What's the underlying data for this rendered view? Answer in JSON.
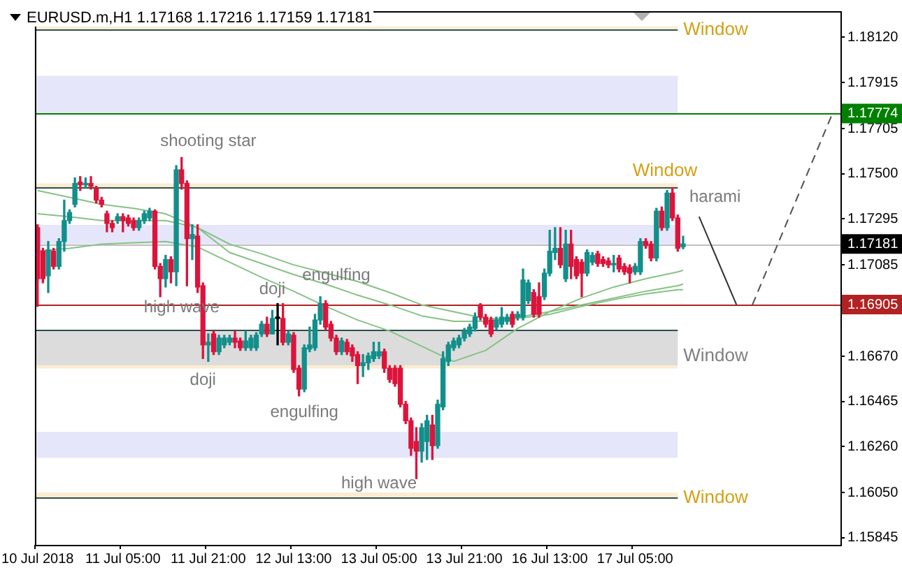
{
  "chart_data": {
    "type": "candlestick",
    "title": "EURUSD.m,H1 1.17168 1.17216 1.17159 1.17181",
    "categories": [
      "10 Jul 2018",
      null,
      null,
      null,
      null,
      null,
      null,
      null,
      null,
      null,
      null,
      null,
      null,
      null,
      null,
      null,
      "11 Jul 05:00",
      null,
      null,
      null,
      null,
      null,
      null,
      null,
      null,
      null,
      null,
      null,
      null,
      null,
      null,
      null,
      "11 Jul 21:00",
      null,
      null,
      null,
      null,
      null,
      null,
      null,
      null,
      null,
      null,
      null,
      null,
      null,
      null,
      null,
      "12 Jul 13:00",
      null,
      null,
      null,
      null,
      null,
      null,
      null,
      null,
      null,
      null,
      null,
      null,
      null,
      null,
      null,
      "13 Jul 05:00",
      null,
      null,
      null,
      null,
      null,
      null,
      null,
      null,
      null,
      null,
      null,
      null,
      null,
      null,
      null,
      "13 Jul 21:00",
      null,
      null,
      null,
      null,
      null,
      null,
      null,
      null,
      null,
      null,
      null,
      null,
      null,
      null,
      null,
      "16 Jul 13:00",
      null,
      null,
      null,
      null,
      null,
      null,
      null,
      null,
      null,
      null,
      null,
      null,
      null,
      null,
      null,
      "17 Jul 05:00",
      null,
      null,
      null,
      null,
      null,
      null,
      null,
      null,
      null,
      null,
      null,
      null,
      null,
      null,
      null,
      null,
      null,
      null,
      null,
      null,
      null,
      null,
      null,
      null,
      null,
      null,
      null,
      null,
      null,
      null,
      null,
      null,
      null,
      null,
      null,
      null,
      null,
      null
    ],
    "ohlc": [
      [
        1.17255,
        1.17268,
        1.16897,
        1.17023
      ],
      [
        1.17148,
        1.17161,
        1.17004,
        1.17023
      ],
      [
        1.17036,
        1.17192,
        1.1696,
        1.17154
      ],
      [
        1.17148,
        1.17161,
        1.17067,
        1.17079
      ],
      [
        1.17079,
        1.17205,
        1.17067,
        1.17192
      ],
      [
        1.17192,
        1.1738,
        1.17148,
        1.17287
      ],
      [
        1.17287,
        1.17336,
        1.17274,
        1.17324
      ],
      [
        1.17361,
        1.17481,
        1.17349,
        1.17456
      ],
      [
        1.17462,
        1.17487,
        1.17424,
        1.1745
      ],
      [
        1.1745,
        1.17481,
        1.17437,
        1.17456
      ],
      [
        1.17456,
        1.17487,
        1.1743,
        1.17443
      ],
      [
        1.1743,
        1.17443,
        1.17367,
        1.1738
      ],
      [
        1.1738,
        1.17393,
        1.17349,
        1.17361
      ],
      [
        1.17318,
        1.1733,
        1.17236,
        1.17274
      ],
      [
        1.17274,
        1.17287,
        1.17236,
        1.17255
      ],
      [
        1.17287,
        1.17318,
        1.17274,
        1.17305
      ],
      [
        1.17305,
        1.17318,
        1.17236,
        1.17287
      ],
      [
        1.17299,
        1.17312,
        1.17262,
        1.17274
      ],
      [
        1.17287,
        1.17299,
        1.17243,
        1.17255
      ],
      [
        1.17255,
        1.17299,
        1.17243,
        1.17287
      ],
      [
        1.17287,
        1.1733,
        1.17274,
        1.17318
      ],
      [
        1.17299,
        1.17343,
        1.17287,
        1.1733
      ],
      [
        1.1733,
        1.17336,
        1.17067,
        1.17079
      ],
      [
        1.17079,
        1.17092,
        1.16941,
        1.17023
      ],
      [
        1.17023,
        1.17129,
        1.16985,
        1.1711
      ],
      [
        1.1711,
        1.17123,
        1.17004,
        1.17054
      ],
      [
        1.17054,
        1.17537,
        1.16991,
        1.17518
      ],
      [
        1.17518,
        1.17574,
        1.1743,
        1.17456
      ],
      [
        1.17456,
        1.17468,
        1.16991,
        1.17205
      ],
      [
        1.17205,
        1.17268,
        1.1711,
        1.17224
      ],
      [
        1.17217,
        1.17268,
        1.1696,
        1.16985
      ],
      [
        1.16991,
        1.17004,
        1.1666,
        1.16722
      ],
      [
        1.16722,
        1.16772,
        1.16647,
        1.16734
      ],
      [
        1.16772,
        1.16785,
        1.16678,
        1.16691
      ],
      [
        1.16691,
        1.16766,
        1.16678,
        1.16753
      ],
      [
        1.16722,
        1.16766,
        1.16709,
        1.16753
      ],
      [
        1.16734,
        1.16766,
        1.16722,
        1.16753
      ],
      [
        1.16753,
        1.16785,
        1.16709,
        1.16734
      ],
      [
        1.1674,
        1.16753,
        1.16697,
        1.16709
      ],
      [
        1.16709,
        1.16785,
        1.16697,
        1.1674
      ],
      [
        1.16709,
        1.16766,
        1.16697,
        1.16753
      ],
      [
        1.16709,
        1.16778,
        1.16697,
        1.16766
      ],
      [
        1.16772,
        1.16829,
        1.1676,
        1.16816
      ],
      [
        1.16816,
        1.16848,
        1.1676,
        1.16772
      ],
      [
        1.16772,
        1.16879,
        1.16772,
        1.16842
      ],
      [
        1.16842,
        1.1691,
        1.16722,
        1.16842
      ],
      [
        1.16842,
        1.1691,
        1.16722,
        1.16734
      ],
      [
        1.16734,
        1.16785,
        1.16722,
        1.16772
      ],
      [
        1.16766,
        1.16778,
        1.16597,
        1.1661
      ],
      [
        1.16616,
        1.16628,
        1.1649,
        1.16521
      ],
      [
        1.16521,
        1.16722,
        1.16509,
        1.16709
      ],
      [
        1.16703,
        1.16803,
        1.16691,
        1.16722
      ],
      [
        1.16709,
        1.16861,
        1.16697,
        1.16835
      ],
      [
        1.16835,
        1.16941,
        1.16816,
        1.1691
      ],
      [
        1.1691,
        1.16923,
        1.16791,
        1.16803
      ],
      [
        1.16816,
        1.16829,
        1.1674,
        1.16753
      ],
      [
        1.16753,
        1.16766,
        1.16678,
        1.16691
      ],
      [
        1.16691,
        1.16753,
        1.16678,
        1.1674
      ],
      [
        1.16734,
        1.16747,
        1.16678,
        1.16691
      ],
      [
        1.16709,
        1.16722,
        1.16647,
        1.16672
      ],
      [
        1.16678,
        1.16691,
        1.16546,
        1.16628
      ],
      [
        1.16628,
        1.16678,
        1.16578,
        1.16641
      ],
      [
        1.16641,
        1.16685,
        1.1661,
        1.16672
      ],
      [
        1.1666,
        1.16734,
        1.16647,
        1.16691
      ],
      [
        1.16672,
        1.16734,
        1.1666,
        1.16691
      ],
      [
        1.16691,
        1.16703,
        1.16597,
        1.16616
      ],
      [
        1.16616,
        1.16628,
        1.16552,
        1.16565
      ],
      [
        1.16616,
        1.16628,
        1.16534,
        1.16546
      ],
      [
        1.16616,
        1.16628,
        1.1644,
        1.16452
      ],
      [
        1.16452,
        1.16465,
        1.16364,
        1.16377
      ],
      [
        1.16377,
        1.1639,
        1.1622,
        1.16252
      ],
      [
        1.16283,
        1.16346,
        1.16114,
        1.16239
      ],
      [
        1.16239,
        1.16364,
        1.16189,
        1.16346
      ],
      [
        1.16283,
        1.16402,
        1.16201,
        1.16377
      ],
      [
        1.16358,
        1.16402,
        1.16201,
        1.16264
      ],
      [
        1.16264,
        1.16471,
        1.16252,
        1.16452
      ],
      [
        1.1644,
        1.16691,
        1.16427,
        1.1666
      ],
      [
        1.16647,
        1.16734,
        1.16628,
        1.16722
      ],
      [
        1.16709,
        1.16753,
        1.16697,
        1.1674
      ],
      [
        1.16722,
        1.16766,
        1.16709,
        1.16753
      ],
      [
        1.16753,
        1.16797,
        1.1674,
        1.16785
      ],
      [
        1.16772,
        1.16816,
        1.1676,
        1.16803
      ],
      [
        1.16797,
        1.16867,
        1.16785,
        1.16848
      ],
      [
        1.16904,
        1.1691,
        1.16835,
        1.16848
      ],
      [
        1.16848,
        1.16861,
        1.16803,
        1.16816
      ],
      [
        1.16835,
        1.16848,
        1.1676,
        1.16772
      ],
      [
        1.16803,
        1.16848,
        1.16791,
        1.16835
      ],
      [
        1.16816,
        1.16892,
        1.16803,
        1.16848
      ],
      [
        1.16829,
        1.16861,
        1.16816,
        1.16848
      ],
      [
        1.16861,
        1.16873,
        1.16803,
        1.16816
      ],
      [
        1.16848,
        1.16873,
        1.16835,
        1.16861
      ],
      [
        1.16848,
        1.17067,
        1.16835,
        1.17017
      ],
      [
        1.16923,
        1.17017,
        1.1691,
        1.17004
      ],
      [
        1.1696,
        1.16973,
        1.16848,
        1.16861
      ],
      [
        1.16941,
        1.17004,
        1.16848,
        1.16861
      ],
      [
        1.16941,
        1.17067,
        1.16928,
        1.17048
      ],
      [
        1.17048,
        1.17243,
        1.17036,
        1.17148
      ],
      [
        1.17142,
        1.17255,
        1.1711,
        1.17161
      ],
      [
        1.17161,
        1.17255,
        1.17073,
        1.17086
      ],
      [
        1.17023,
        1.17243,
        1.1701,
        1.1718
      ],
      [
        1.1718,
        1.17243,
        1.17023,
        1.17079
      ],
      [
        1.1711,
        1.17123,
        1.17023,
        1.17036
      ],
      [
        1.17098,
        1.1711,
        1.16941,
        1.17048
      ],
      [
        1.17048,
        1.17154,
        1.17036,
        1.17142
      ],
      [
        1.17098,
        1.17142,
        1.17086,
        1.17129
      ],
      [
        1.17136,
        1.17148,
        1.17079,
        1.17092
      ],
      [
        1.1711,
        1.17123,
        1.17079,
        1.17092
      ],
      [
        1.17104,
        1.17117,
        1.17073,
        1.17086
      ],
      [
        1.17086,
        1.17129,
        1.17054,
        1.17092
      ],
      [
        1.17117,
        1.17129,
        1.17054,
        1.17067
      ],
      [
        1.17079,
        1.17092,
        1.17042,
        1.17054
      ],
      [
        1.17073,
        1.17086,
        1.17004,
        1.17048
      ],
      [
        1.17054,
        1.17092,
        1.17042,
        1.17079
      ],
      [
        1.17054,
        1.17205,
        1.17042,
        1.17192
      ],
      [
        1.17192,
        1.17205,
        1.17161,
        1.17173
      ],
      [
        1.1718,
        1.17192,
        1.17104,
        1.17117
      ],
      [
        1.17117,
        1.17343,
        1.17104,
        1.1733
      ],
      [
        1.1733,
        1.17349,
        1.17243,
        1.17255
      ],
      [
        1.17255,
        1.17424,
        1.17243,
        1.17412
      ],
      [
        1.17412,
        1.17437,
        1.17287,
        1.17299
      ],
      [
        1.17299,
        1.17312,
        1.17148,
        1.17161
      ],
      [
        1.17168,
        1.17216,
        1.17159,
        1.17181
      ],
      null,
      null,
      null,
      null,
      null,
      null,
      null,
      null,
      null,
      null,
      null,
      null,
      null,
      null,
      null,
      null,
      null,
      null,
      null,
      null,
      null,
      null,
      null,
      null,
      null,
      null,
      null,
      null,
      null
    ],
    "colors": [
      "#dc143c",
      "#dc143c",
      "#128f8b",
      "#dc143c",
      "#128f8b",
      "#128f8b",
      "#128f8b",
      "#128f8b",
      "#dc143c",
      "#128f8b",
      "#dc143c",
      "#dc143c",
      "#dc143c",
      "#dc143c",
      "#dc143c",
      "#128f8b",
      "#dc143c",
      "#dc143c",
      "#dc143c",
      "#128f8b",
      "#128f8b",
      "#128f8b",
      "#dc143c",
      "#dc143c",
      "#128f8b",
      "#dc143c",
      "#128f8b",
      "#dc143c",
      "#dc143c",
      "#128f8b",
      "#dc143c",
      "#dc143c",
      "#128f8b",
      "#dc143c",
      "#128f8b",
      "#128f8b",
      "#128f8b",
      "#dc143c",
      "#dc143c",
      "#128f8b",
      "#128f8b",
      "#128f8b",
      "#128f8b",
      "#dc143c",
      "#128f8b",
      "#000000",
      "#dc143c",
      "#128f8b",
      "#dc143c",
      "#dc143c",
      "#128f8b",
      "#128f8b",
      "#128f8b",
      "#128f8b",
      "#dc143c",
      "#dc143c",
      "#dc143c",
      "#128f8b",
      "#dc143c",
      "#dc143c",
      "#dc143c",
      "#128f8b",
      "#128f8b",
      "#128f8b",
      "#128f8b",
      "#dc143c",
      "#dc143c",
      "#dc143c",
      "#dc143c",
      "#dc143c",
      "#dc143c",
      "#dc143c",
      "#128f8b",
      "#128f8b",
      "#dc143c",
      "#128f8b",
      "#128f8b",
      "#128f8b",
      "#128f8b",
      "#128f8b",
      "#128f8b",
      "#128f8b",
      "#128f8b",
      "#dc143c",
      "#dc143c",
      "#dc143c",
      "#128f8b",
      "#128f8b",
      "#128f8b",
      "#dc143c",
      "#128f8b",
      "#128f8b",
      "#128f8b",
      "#dc143c",
      "#dc143c",
      "#128f8b",
      "#128f8b",
      "#128f8b",
      "#dc143c",
      "#128f8b",
      "#dc143c",
      "#dc143c",
      "#dc143c",
      "#128f8b",
      "#128f8b",
      "#dc143c",
      "#dc143c",
      "#dc143c",
      "#128f8b",
      "#dc143c",
      "#dc143c",
      "#dc143c",
      "#128f8b",
      "#128f8b",
      "#dc143c",
      "#dc143c",
      "#128f8b",
      "#dc143c",
      "#128f8b",
      "#dc143c",
      "#dc143c",
      "#128f8b",
      null,
      null,
      null,
      null,
      null,
      null,
      null,
      null,
      null,
      null,
      null,
      null,
      null,
      null,
      null,
      null,
      null,
      null,
      null,
      null,
      null,
      null,
      null,
      null,
      null,
      null,
      null,
      null,
      null
    ],
    "series": [
      {
        "type": "line",
        "color": "#86c286",
        "values": [
          1.17148,
          null,
          null,
          null,
          null,
          null,
          1.17161,
          null,
          null,
          null,
          null,
          null,
          1.1718,
          null,
          null,
          null,
          null,
          null,
          1.17186,
          null,
          null,
          null,
          null,
          null,
          1.17192,
          null,
          null,
          null,
          null,
          null,
          1.17167,
          null,
          null,
          null,
          null,
          null,
          1.17098,
          null,
          null,
          null,
          null,
          null,
          1.17029,
          null,
          null,
          null,
          null,
          null,
          1.16966,
          null,
          null,
          null,
          null,
          null,
          1.16897,
          null,
          null,
          null,
          null,
          null,
          1.16835,
          null,
          null,
          null,
          null,
          null,
          1.16785,
          null,
          null,
          null,
          null,
          null,
          1.16716,
          null,
          null,
          null,
          null,
          null,
          1.16647,
          null,
          null,
          null,
          null,
          null,
          1.16697,
          null,
          null,
          null,
          null,
          null,
          1.16797,
          null,
          null,
          null,
          null,
          null,
          1.16873,
          null,
          null,
          null,
          null,
          null,
          1.16935,
          null,
          null,
          null,
          null,
          null,
          1.16985,
          null,
          null,
          null,
          null,
          null,
          1.17023,
          null,
          null,
          null,
          null,
          null,
          1.17054,
          1.17061,
          null,
          null,
          null,
          null,
          null,
          null,
          null,
          null,
          null,
          null,
          null,
          null,
          null,
          null,
          null,
          null,
          null,
          null,
          null,
          null,
          null,
          null,
          null,
          null,
          null,
          null,
          null,
          null,
          null
        ]
      },
      {
        "type": "line",
        "color": "#86c286",
        "values": [
          1.17318,
          null,
          null,
          null,
          null,
          null,
          1.17305,
          null,
          null,
          null,
          null,
          null,
          1.17287,
          null,
          null,
          null,
          null,
          null,
          1.17287,
          null,
          null,
          null,
          null,
          null,
          1.17287,
          null,
          null,
          null,
          null,
          null,
          1.17255,
          null,
          null,
          null,
          null,
          null,
          1.17142,
          null,
          null,
          null,
          null,
          null,
          1.17092,
          null,
          null,
          null,
          null,
          null,
          1.17042,
          null,
          null,
          null,
          null,
          null,
          1.16998,
          null,
          null,
          null,
          null,
          null,
          1.16948,
          null,
          null,
          null,
          null,
          null,
          1.16904,
          null,
          null,
          null,
          null,
          null,
          1.16854,
          null,
          null,
          null,
          null,
          null,
          1.16829,
          null,
          null,
          null,
          null,
          null,
          1.16829,
          null,
          null,
          null,
          null,
          null,
          1.16848,
          null,
          null,
          null,
          null,
          null,
          1.16873,
          null,
          null,
          null,
          null,
          null,
          1.16904,
          null,
          null,
          null,
          null,
          null,
          1.16935,
          null,
          null,
          null,
          null,
          null,
          1.16966,
          null,
          null,
          null,
          null,
          null,
          1.16991,
          1.16998,
          null,
          null,
          null,
          null,
          null,
          null,
          null,
          null,
          null,
          null,
          null,
          null,
          null,
          null,
          null,
          null,
          null,
          null,
          null,
          null,
          null,
          null,
          null,
          null,
          null,
          null,
          null,
          null,
          null
        ]
      },
      {
        "type": "line",
        "color": "#86c286",
        "values": [
          1.17424,
          null,
          null,
          null,
          null,
          null,
          1.17393,
          null,
          null,
          null,
          null,
          null,
          1.17361,
          null,
          null,
          null,
          null,
          null,
          1.17343,
          null,
          null,
          null,
          null,
          null,
          1.17318,
          null,
          null,
          null,
          null,
          null,
          1.17255,
          null,
          null,
          null,
          null,
          null,
          1.1718,
          null,
          null,
          null,
          null,
          null,
          1.17136,
          null,
          null,
          null,
          null,
          null,
          1.17086,
          null,
          null,
          null,
          null,
          null,
          1.17048,
          null,
          null,
          null,
          null,
          null,
          1.1701,
          null,
          null,
          null,
          null,
          null,
          1.1696,
          null,
          null,
          null,
          null,
          null,
          1.16904,
          null,
          null,
          null,
          null,
          null,
          1.16873,
          null,
          null,
          null,
          null,
          null,
          1.16842,
          null,
          null,
          null,
          null,
          null,
          1.16842,
          null,
          null,
          null,
          null,
          null,
          1.16861,
          null,
          null,
          null,
          null,
          null,
          1.16897,
          null,
          null,
          null,
          null,
          null,
          1.16928,
          null,
          null,
          null,
          null,
          null,
          1.16954,
          null,
          null,
          null,
          null,
          null,
          1.16973,
          1.16973,
          null,
          null,
          null,
          null,
          null,
          null,
          null,
          null,
          null,
          null,
          null,
          null,
          null,
          null,
          null,
          null,
          null,
          null,
          null,
          null,
          null,
          null,
          null,
          null,
          null,
          null,
          null,
          null,
          null
        ]
      },
      {
        "type": "line",
        "color": "#303030",
        "line_style": "solid",
        "values": [
          null,
          null,
          null,
          null,
          null,
          null,
          null,
          null,
          null,
          null,
          null,
          null,
          null,
          null,
          null,
          null,
          null,
          null,
          null,
          null,
          null,
          null,
          null,
          null,
          null,
          null,
          null,
          null,
          null,
          null,
          null,
          null,
          null,
          null,
          null,
          null,
          null,
          null,
          null,
          null,
          null,
          null,
          null,
          null,
          null,
          null,
          null,
          null,
          null,
          null,
          null,
          null,
          null,
          null,
          null,
          null,
          null,
          null,
          null,
          null,
          null,
          null,
          null,
          null,
          null,
          null,
          null,
          null,
          null,
          null,
          null,
          null,
          null,
          null,
          null,
          null,
          null,
          null,
          null,
          null,
          null,
          null,
          null,
          null,
          null,
          null,
          null,
          null,
          null,
          null,
          null,
          null,
          null,
          null,
          null,
          null,
          null,
          null,
          null,
          null,
          null,
          null,
          null,
          null,
          null,
          null,
          null,
          null,
          null,
          null,
          null,
          null,
          null,
          null,
          null,
          null,
          null,
          null,
          null,
          null,
          null,
          null,
          null,
          null,
          1.17305,
          null,
          null,
          null,
          null,
          null,
          null,
          1.16905,
          null,
          null,
          null,
          null,
          null,
          null,
          null,
          null,
          null,
          null,
          null,
          null,
          null,
          null,
          null,
          null,
          null,
          null,
          null
        ]
      },
      {
        "type": "line",
        "color": "#505050",
        "line_style": "dashed",
        "values": [
          null,
          null,
          null,
          null,
          null,
          null,
          null,
          null,
          null,
          null,
          null,
          null,
          null,
          null,
          null,
          null,
          null,
          null,
          null,
          null,
          null,
          null,
          null,
          null,
          null,
          null,
          null,
          null,
          null,
          null,
          null,
          null,
          null,
          null,
          null,
          null,
          null,
          null,
          null,
          null,
          null,
          null,
          null,
          null,
          null,
          null,
          null,
          null,
          null,
          null,
          null,
          null,
          null,
          null,
          null,
          null,
          null,
          null,
          null,
          null,
          null,
          null,
          null,
          null,
          null,
          null,
          null,
          null,
          null,
          null,
          null,
          null,
          null,
          null,
          null,
          null,
          null,
          null,
          null,
          null,
          null,
          null,
          null,
          null,
          null,
          null,
          null,
          null,
          null,
          null,
          null,
          null,
          null,
          null,
          null,
          null,
          null,
          null,
          null,
          null,
          null,
          null,
          null,
          null,
          null,
          null,
          null,
          null,
          null,
          null,
          null,
          null,
          null,
          null,
          null,
          null,
          null,
          null,
          null,
          null,
          null,
          null,
          null,
          null,
          null,
          null,
          null,
          null,
          null,
          null,
          null,
          null,
          null,
          null,
          1.16905,
          null,
          null,
          null,
          null,
          null,
          null,
          null,
          null,
          null,
          null,
          null,
          null,
          null,
          null,
          1.17774,
          null
        ]
      }
    ],
    "ylim": [
      1.15813,
      1.18239
    ],
    "yticks": [
      1.15845,
      {
        "value": 1.1605,
        "label": "1.16050"
      },
      {
        "value": 1.1626,
        "label": "1.16260"
      },
      1.16465,
      {
        "value": 1.1667,
        "label": "1.16670"
      },
      1.16905,
      1.17085,
      1.17181,
      1.17295,
      {
        "value": 1.175,
        "label": "1.17500"
      },
      1.17705,
      1.17774,
      1.17915,
      {
        "value": 1.1812,
        "label": "1.18120"
      }
    ],
    "ref_lines": [
      {
        "axis": "y",
        "value": 1.18158,
        "label": "Window",
        "color": "#2f4f4f"
      },
      {
        "axis": "y",
        "value": 1.17774,
        "color": "#008000"
      },
      {
        "axis": "y",
        "value": 1.17437,
        "label": "Window",
        "color": "#2f4f4f"
      },
      {
        "axis": "y",
        "value": 1.17181,
        "color": "#c0c0c0"
      },
      {
        "axis": "y",
        "value": 1.16905,
        "color": "#b22222"
      },
      {
        "axis": "y",
        "value": 1.16791,
        "color": "#2f4f4f"
      },
      {
        "axis": "y",
        "value": 1.16026,
        "label": "Window",
        "color": "#2f4f4f"
      }
    ],
    "bands": [
      {
        "axis": "y",
        "from": 1.17775,
        "to": 1.17945,
        "color": "#e6e6fa"
      },
      {
        "axis": "y",
        "from": 1.1718,
        "to": 1.17267,
        "color": "#e6e6fa"
      },
      {
        "axis": "y",
        "from": 1.16628,
        "to": 1.16791,
        "color": "#dcdcdc",
        "label": "Window"
      },
      {
        "axis": "y",
        "from": 1.16208,
        "to": 1.16327,
        "color": "#e6e6fa"
      },
      {
        "axis": "y",
        "from": 1.18158,
        "to": 1.1817,
        "color": "#fbecd0"
      },
      {
        "axis": "y",
        "from": 1.17437,
        "to": 1.17456,
        "color": "#fbecd0"
      },
      {
        "axis": "y",
        "from": 1.16615,
        "to": 1.16628,
        "color": "#fbecd0"
      },
      {
        "axis": "y",
        "from": 1.16026,
        "to": 1.16051,
        "color": "#fbecd0"
      }
    ],
    "annotations": [
      "shooting star",
      "high wave",
      "doji",
      "engulfing",
      "doji",
      "engulfing",
      "high wave",
      "harami"
    ],
    "legend": false
  }
}
